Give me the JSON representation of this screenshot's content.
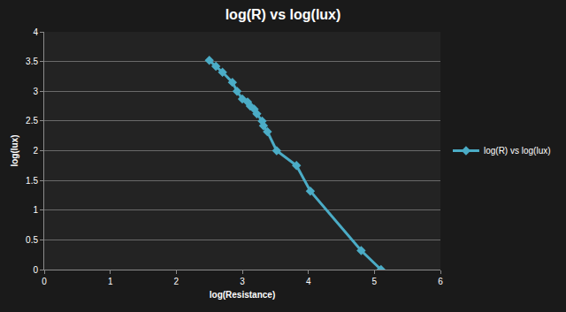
{
  "chart_data": {
    "type": "line",
    "title": "log(R) vs log(lux)",
    "x_label": "log(Resistance)",
    "y_label": "log(lux)",
    "series": [
      {
        "name": "log(R) vs log(lux)",
        "color": "#4bacc6",
        "marker": "diamond",
        "x": [
          2.5,
          2.6,
          2.7,
          2.85,
          2.92,
          3.0,
          3.08,
          3.12,
          3.18,
          3.22,
          3.3,
          3.32,
          3.38,
          3.52,
          3.82,
          4.03,
          4.8,
          5.1
        ],
        "values": [
          3.52,
          3.42,
          3.32,
          3.15,
          3.0,
          2.87,
          2.82,
          2.75,
          2.7,
          2.62,
          2.5,
          2.42,
          2.32,
          2.0,
          1.75,
          1.32,
          0.32,
          0.0
        ]
      }
    ],
    "xlim": [
      0,
      6
    ],
    "xticks": [
      0,
      1,
      2,
      3,
      4,
      5,
      6
    ],
    "ylim": [
      0,
      4
    ],
    "yticks": [
      0,
      0.5,
      1,
      1.5,
      2,
      2.5,
      3,
      3.5,
      4
    ],
    "grid": "y",
    "legend": "right"
  }
}
